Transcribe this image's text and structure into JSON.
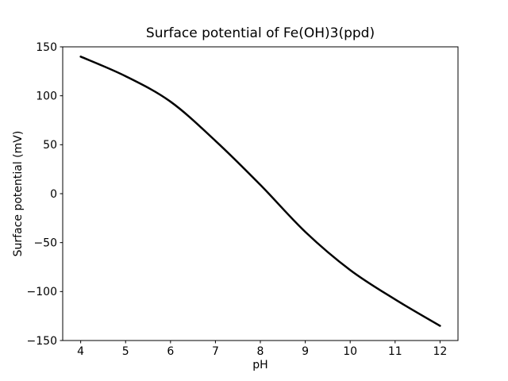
{
  "figure": {
    "background": "#ffffff",
    "frame_color": "#000000"
  },
  "chart_data": {
    "type": "line",
    "title": "Surface potential of Fe(OH)3(ppd)",
    "xlabel": "pH",
    "ylabel": "Surface potential (mV)",
    "x": [
      4,
      5,
      6,
      7,
      8,
      9,
      10,
      11,
      12
    ],
    "y": [
      140,
      120,
      94,
      54,
      9,
      -39,
      -78,
      -108,
      -135
    ],
    "xlim": [
      3.6,
      12.4
    ],
    "ylim": [
      -150,
      150
    ],
    "xticks": [
      4,
      5,
      6,
      7,
      8,
      9,
      10,
      11,
      12
    ],
    "xtick_labels": [
      "4",
      "5",
      "6",
      "7",
      "8",
      "9",
      "10",
      "11",
      "12"
    ],
    "yticks": [
      -150,
      -100,
      -50,
      0,
      50,
      100,
      150
    ],
    "ytick_labels": [
      "−150",
      "−100",
      "−50",
      "0",
      "50",
      "100",
      "150"
    ],
    "line_color": "#000000",
    "line_width": 2.5,
    "grid": false,
    "legend_position": "none"
  }
}
